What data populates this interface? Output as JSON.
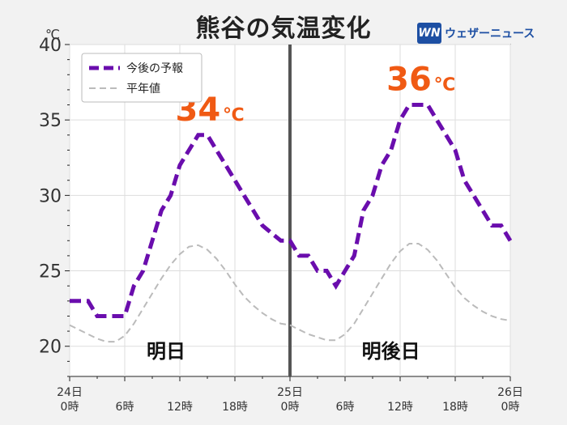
{
  "title": "熊谷の気温変化",
  "logo": {
    "mark": "WN",
    "text": "ウェザーニュース"
  },
  "chart_data": {
    "type": "line",
    "unit": "℃",
    "ylim": [
      18,
      40
    ],
    "yticks": [
      20,
      25,
      30,
      35,
      40
    ],
    "xlim": [
      0,
      48
    ],
    "xticks": [
      {
        "x": 0,
        "line1": "24日",
        "line2": "0時"
      },
      {
        "x": 6,
        "line1": "",
        "line2": "6時"
      },
      {
        "x": 12,
        "line1": "",
        "line2": "12時"
      },
      {
        "x": 18,
        "line1": "",
        "line2": "18時"
      },
      {
        "x": 24,
        "line1": "25日",
        "line2": "0時"
      },
      {
        "x": 30,
        "line1": "",
        "line2": "6時"
      },
      {
        "x": 36,
        "line1": "",
        "line2": "12時"
      },
      {
        "x": 42,
        "line1": "",
        "line2": "18時"
      },
      {
        "x": 48,
        "line1": "26日",
        "line2": "0時"
      }
    ],
    "grid": true,
    "divider_x": 24,
    "legend_position": "top-left",
    "series": [
      {
        "name": "今後の予報",
        "color": "#6a0dad",
        "style": "dashed-thick",
        "x": [
          0,
          1,
          2,
          3,
          4,
          5,
          6,
          7,
          8,
          9,
          10,
          11,
          12,
          13,
          14,
          15,
          16,
          17,
          18,
          19,
          20,
          21,
          22,
          23,
          24,
          25,
          26,
          27,
          28,
          29,
          30,
          31,
          32,
          33,
          34,
          35,
          36,
          37,
          38,
          39,
          40,
          41,
          42,
          43,
          44,
          45,
          46,
          47,
          48
        ],
        "values": [
          23,
          23,
          23,
          22,
          22,
          22,
          22,
          24,
          25,
          27,
          29,
          30,
          32,
          33,
          34,
          34,
          33,
          32,
          31,
          30,
          29,
          28,
          27.5,
          27,
          27,
          26,
          26,
          25,
          25,
          24,
          25,
          26,
          29,
          30,
          32,
          33,
          35,
          36,
          36,
          36,
          35,
          34,
          33,
          31,
          30,
          29,
          28,
          28,
          27
        ]
      },
      {
        "name": "平年値",
        "color": "#bbbbbb",
        "style": "dashed-thin",
        "x": [
          0,
          1,
          2,
          3,
          4,
          5,
          6,
          7,
          8,
          9,
          10,
          11,
          12,
          13,
          14,
          15,
          16,
          17,
          18,
          19,
          20,
          21,
          22,
          23,
          24,
          25,
          26,
          27,
          28,
          29,
          30,
          31,
          32,
          33,
          34,
          35,
          36,
          37,
          38,
          39,
          40,
          41,
          42,
          43,
          44,
          45,
          46,
          47,
          48
        ],
        "values": [
          21.4,
          21.1,
          20.8,
          20.5,
          20.3,
          20.3,
          20.7,
          21.5,
          22.5,
          23.5,
          24.5,
          25.4,
          26.1,
          26.6,
          26.7,
          26.4,
          25.8,
          25,
          24.1,
          23.3,
          22.7,
          22.2,
          21.8,
          21.5,
          21.4,
          21.1,
          20.8,
          20.6,
          20.4,
          20.4,
          20.8,
          21.5,
          22.5,
          23.5,
          24.5,
          25.5,
          26.3,
          26.8,
          26.8,
          26.4,
          25.7,
          24.8,
          23.9,
          23.2,
          22.7,
          22.3,
          22,
          21.8,
          21.7
        ]
      }
    ],
    "annotations": {
      "peaks": [
        {
          "x": 14.5,
          "y": 34,
          "value": "34",
          "unit": "℃"
        },
        {
          "x": 37.5,
          "y": 36,
          "value": "36",
          "unit": "℃"
        }
      ],
      "day_labels": [
        {
          "x": 10.5,
          "text": "明日"
        },
        {
          "x": 35,
          "text": "明後日"
        }
      ]
    }
  }
}
